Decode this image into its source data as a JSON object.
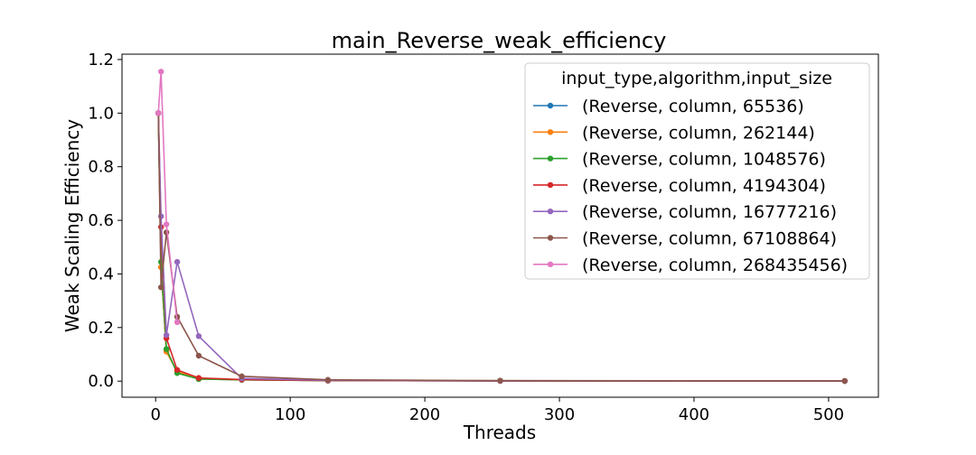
{
  "chart_data": {
    "type": "line",
    "title": "main_Reverse_weak_efficiency",
    "xlabel": "Threads",
    "ylabel": "Weak Scaling Efficiency",
    "xlim": [
      -25,
      537
    ],
    "ylim": [
      -0.06,
      1.22
    ],
    "xticks": [
      0,
      100,
      200,
      300,
      400,
      500
    ],
    "yticks": [
      0.0,
      0.2,
      0.4,
      0.6,
      0.8,
      1.0,
      1.2
    ],
    "xtick_labels": [
      "0",
      "100",
      "200",
      "300",
      "400",
      "500"
    ],
    "ytick_labels": [
      "0.0",
      "0.2",
      "0.4",
      "0.6",
      "0.8",
      "1.0",
      "1.2"
    ],
    "grid": false,
    "legend_title": "input_type,algorithm,input_size",
    "legend_position": "upper right",
    "series": [
      {
        "name": "(Reverse, column, 65536)",
        "color": "#1f77b4",
        "x": [
          2,
          4,
          8,
          16,
          32,
          64,
          128,
          256,
          512
        ],
        "y": [
          1.0,
          0.425,
          0.115,
          0.035,
          0.008,
          0.005,
          0.002,
          0.001,
          0.0005
        ]
      },
      {
        "name": "(Reverse, column, 262144)",
        "color": "#ff7f0e",
        "x": [
          2,
          4,
          8,
          16,
          32,
          64,
          128,
          256,
          512
        ],
        "y": [
          1.0,
          0.425,
          0.11,
          0.035,
          0.008,
          0.005,
          0.002,
          0.001,
          0.0005
        ]
      },
      {
        "name": "(Reverse, column, 1048576)",
        "color": "#2ca02c",
        "x": [
          2,
          4,
          8,
          16,
          32,
          64,
          128,
          256,
          512
        ],
        "y": [
          1.0,
          0.445,
          0.12,
          0.03,
          0.008,
          0.005,
          0.002,
          0.001,
          0.0005
        ]
      },
      {
        "name": "(Reverse, column, 4194304)",
        "color": "#d62728",
        "x": [
          2,
          4,
          8,
          16,
          32,
          64,
          128,
          256,
          512
        ],
        "y": [
          1.0,
          0.575,
          0.16,
          0.042,
          0.012,
          0.006,
          0.002,
          0.001,
          0.0005
        ]
      },
      {
        "name": "(Reverse, column, 16777216)",
        "color": "#9467bd",
        "x": [
          2,
          4,
          8,
          16,
          32,
          64,
          128,
          256,
          512
        ],
        "y": [
          1.0,
          0.615,
          0.172,
          0.445,
          0.168,
          0.01,
          0.003,
          0.001,
          0.0005
        ]
      },
      {
        "name": "(Reverse, column, 67108864)",
        "color": "#8c564b",
        "x": [
          2,
          4,
          8,
          16,
          32,
          64,
          128,
          256,
          512
        ],
        "y": [
          1.0,
          0.35,
          0.555,
          0.24,
          0.095,
          0.018,
          0.005,
          0.002,
          0.001
        ]
      },
      {
        "name": "(Reverse, column, 268435456)",
        "color": "#e377c2",
        "x": [
          2,
          4,
          8,
          16
        ],
        "y": [
          1.0,
          1.155,
          0.585,
          0.22
        ]
      }
    ]
  }
}
